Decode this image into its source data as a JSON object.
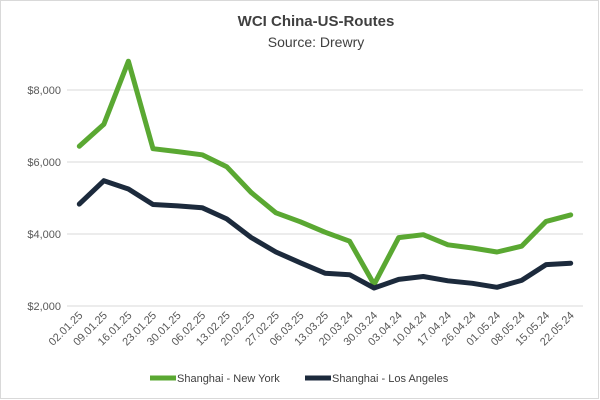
{
  "chart_data": {
    "type": "line",
    "title": "WCI China-US-Routes",
    "subtitle": "Source: Drewry",
    "xlabel": "",
    "ylabel": "",
    "x": [
      "02.01.25",
      "09.01.25",
      "16.01.25",
      "23.01.25",
      "30.01.25",
      "06.02.25",
      "13.02.25",
      "20.02.25",
      "27.02.25",
      "06.03.25",
      "13.03.25",
      "20.03.24",
      "30.03.24",
      "03.04.24",
      "10.04.24",
      "17.04.24",
      "26.04.24",
      "01.05.24",
      "08.05.24",
      "15.05.24",
      "22.05.24"
    ],
    "ylim": [
      2000,
      9000
    ],
    "yticks": [
      2000,
      4000,
      6000,
      8000
    ],
    "ytick_labels": [
      "$2,000",
      "$4,000",
      "$6,000",
      "$8,000"
    ],
    "grid": "horizontal",
    "legend_position": "bottom",
    "series": [
      {
        "name": "Shanghai - New York",
        "color": "#5aa832",
        "values": [
          6440,
          7050,
          8800,
          6370,
          6290,
          6200,
          5870,
          5150,
          4590,
          4340,
          4050,
          3800,
          2600,
          3900,
          3980,
          3700,
          3610,
          3500,
          3660,
          4350,
          4530
        ]
      },
      {
        "name": "Shanghai - Los Angeles",
        "color": "#1c2a3c",
        "values": [
          4830,
          5480,
          5250,
          4820,
          4780,
          4730,
          4420,
          3900,
          3500,
          3200,
          2910,
          2870,
          2500,
          2740,
          2820,
          2700,
          2630,
          2520,
          2710,
          3150,
          3190
        ]
      }
    ]
  }
}
